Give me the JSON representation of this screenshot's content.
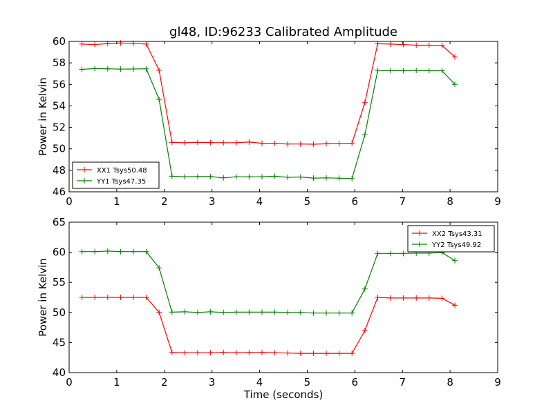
{
  "title": "gl48, ID:96233 Calibrated Amplitude",
  "xlabel": "Time (seconds)",
  "chart_data": [
    {
      "type": "line",
      "ylabel": "Power in Kelvin",
      "xlim": [
        0,
        9
      ],
      "ylim": [
        46,
        60
      ],
      "xticks": [
        0,
        1,
        2,
        3,
        4,
        5,
        6,
        7,
        8,
        9
      ],
      "yticks": [
        46,
        48,
        50,
        52,
        54,
        56,
        58,
        60
      ],
      "legend_position": "lower-left",
      "x": [
        0.27,
        0.54,
        0.81,
        1.08,
        1.35,
        1.62,
        1.89,
        2.16,
        2.43,
        2.7,
        2.97,
        3.24,
        3.51,
        3.78,
        4.05,
        4.32,
        4.59,
        4.86,
        5.13,
        5.4,
        5.67,
        5.94,
        6.21,
        6.48,
        6.75,
        7.02,
        7.29,
        7.56,
        7.83,
        8.1
      ],
      "series": [
        {
          "name": "XX1 Tsys50.48",
          "color": "#ff0000",
          "values": [
            59.75,
            59.7,
            59.8,
            59.85,
            59.82,
            59.75,
            57.3,
            50.6,
            50.57,
            50.6,
            50.58,
            50.57,
            50.57,
            50.63,
            50.52,
            50.5,
            50.45,
            50.45,
            50.43,
            50.47,
            50.47,
            50.52,
            54.3,
            59.78,
            59.75,
            59.7,
            59.65,
            59.65,
            59.62,
            58.55
          ]
        },
        {
          "name": "YY1 Tsys47.35",
          "color": "#008000",
          "values": [
            57.4,
            57.47,
            57.45,
            57.42,
            57.43,
            57.45,
            54.6,
            47.45,
            47.4,
            47.42,
            47.42,
            47.3,
            47.4,
            47.4,
            47.4,
            47.45,
            47.35,
            47.38,
            47.28,
            47.3,
            47.27,
            47.23,
            51.3,
            57.3,
            57.27,
            57.28,
            57.3,
            57.27,
            57.27,
            56.0
          ]
        }
      ]
    },
    {
      "type": "line",
      "ylabel": "Power in Kelvin",
      "xlim": [
        0,
        9
      ],
      "ylim": [
        40,
        65
      ],
      "xticks": [
        0,
        1,
        2,
        3,
        4,
        5,
        6,
        7,
        8,
        9
      ],
      "yticks": [
        40,
        45,
        50,
        55,
        60,
        65
      ],
      "legend_position": "upper-right",
      "x": [
        0.27,
        0.54,
        0.81,
        1.08,
        1.35,
        1.62,
        1.89,
        2.16,
        2.43,
        2.7,
        2.97,
        3.24,
        3.51,
        3.78,
        4.05,
        4.32,
        4.59,
        4.86,
        5.13,
        5.4,
        5.67,
        5.94,
        6.21,
        6.48,
        6.75,
        7.02,
        7.29,
        7.56,
        7.83,
        8.1
      ],
      "series": [
        {
          "name": "XX2 Tsys43.31",
          "color": "#ff0000",
          "values": [
            52.5,
            52.5,
            52.5,
            52.5,
            52.5,
            52.5,
            50.0,
            43.35,
            43.3,
            43.3,
            43.3,
            43.35,
            43.3,
            43.35,
            43.35,
            43.3,
            43.25,
            43.2,
            43.2,
            43.2,
            43.2,
            43.2,
            47.0,
            52.5,
            52.4,
            52.4,
            52.4,
            52.4,
            52.35,
            51.2
          ]
        },
        {
          "name": "YY2 Tsys49.92",
          "color": "#008000",
          "values": [
            60.1,
            60.1,
            60.2,
            60.1,
            60.1,
            60.1,
            57.4,
            50.05,
            50.1,
            50.0,
            50.1,
            50.0,
            50.05,
            50.05,
            50.05,
            50.05,
            50.0,
            50.0,
            49.9,
            49.9,
            49.9,
            49.9,
            53.9,
            59.8,
            59.8,
            59.8,
            59.85,
            59.85,
            59.95,
            58.6
          ]
        }
      ]
    }
  ]
}
